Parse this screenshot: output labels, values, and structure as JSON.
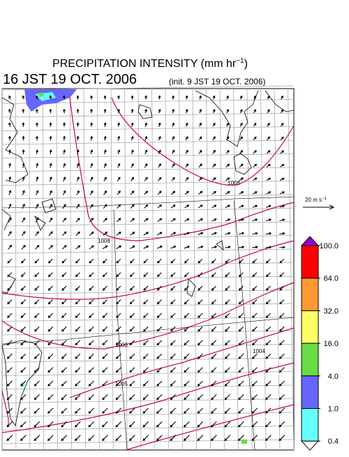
{
  "header": {
    "title": "PRECIPITATION INTENSITY (mm hr",
    "title_exp": "−1",
    "title_close": ")",
    "valid_time": "16 JST 19 OCT. 2006",
    "init_time": "(init. 9 JST 19 OCT. 2006)"
  },
  "wind_scale": {
    "label": "20 m s",
    "label_exp": "−1"
  },
  "colorbar": {
    "levels": [
      {
        "value": 100,
        "label": "100.0"
      },
      {
        "value": 64,
        "label": "64.0"
      },
      {
        "value": 32,
        "label": "32.0"
      },
      {
        "value": 16,
        "label": "16.0"
      },
      {
        "value": 4,
        "label": "4.0"
      },
      {
        "value": 1,
        "label": "1.0"
      },
      {
        "value": 0.4,
        "label": "0.4"
      }
    ],
    "over_color": "#9900cc",
    "colors": [
      "#ff0000",
      "#ff9933",
      "#ffff66",
      "#66dd44",
      "#6666ff",
      "#66ffff"
    ],
    "under_color": "#ffffff"
  },
  "isobars": [
    {
      "label": "1008"
    },
    {
      "label": "1008"
    },
    {
      "label": "1006"
    },
    {
      "label": "1004"
    },
    {
      "label": "1005"
    }
  ]
}
